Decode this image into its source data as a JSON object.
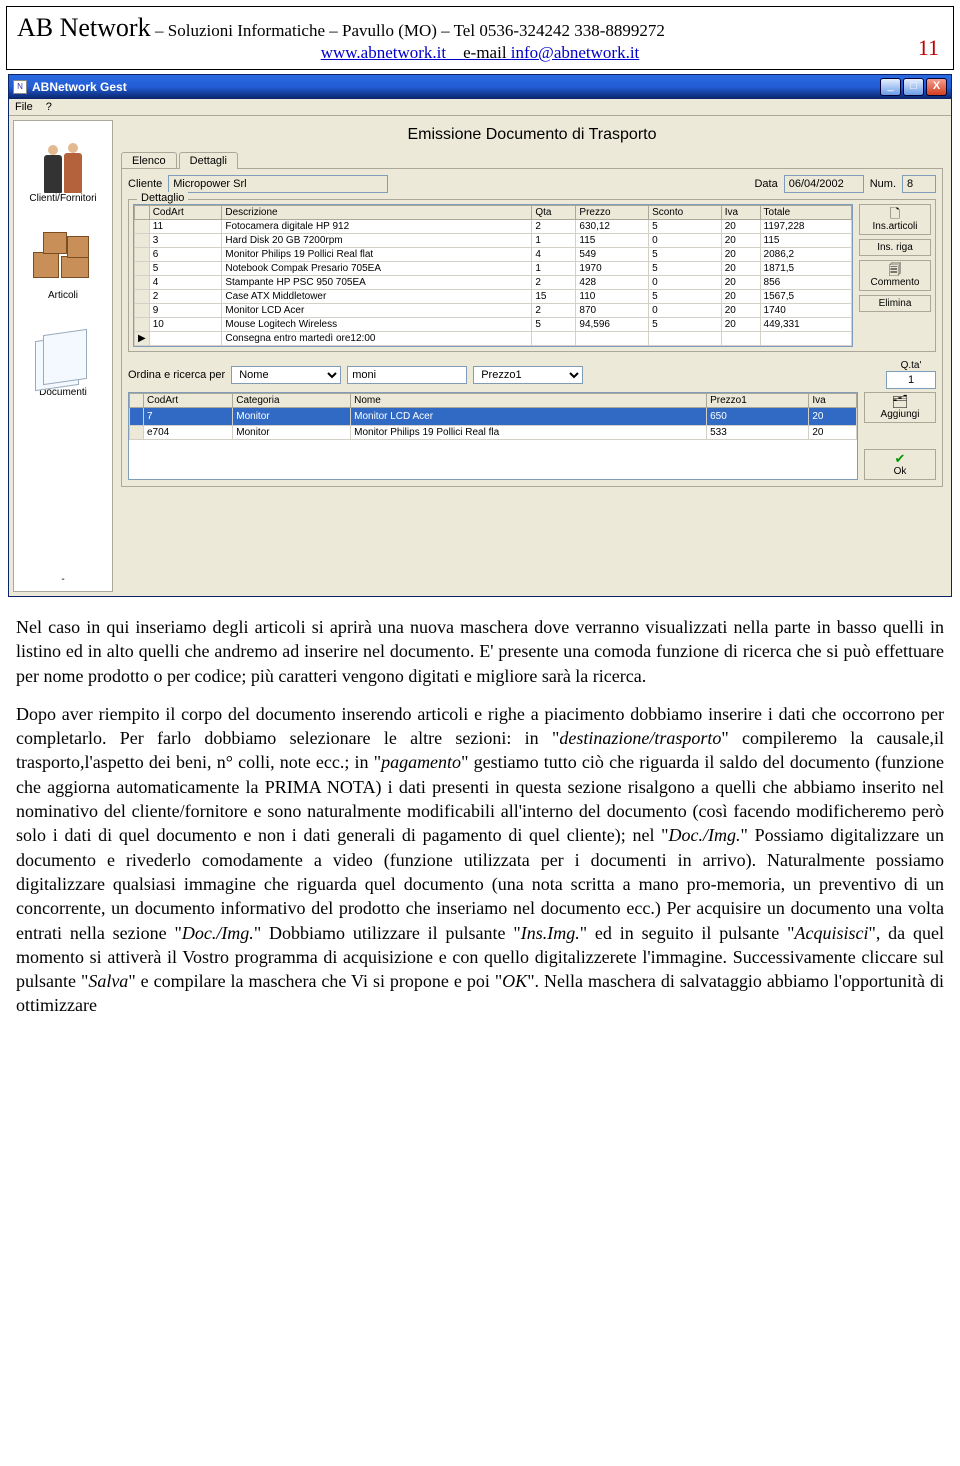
{
  "header": {
    "brand": "AB Network",
    "sep": " – ",
    "tagline": "Soluzioni Informatiche – Pavullo (MO) – Tel 0536-324242  338-8899272",
    "web": "www.abnetwork.it",
    "email_lbl": "e-mail ",
    "email": "info@abnetwork.it",
    "page": "11"
  },
  "win": {
    "title": "ABNetwork Gest",
    "menu_file": "File",
    "menu_help": "?"
  },
  "sidebar": {
    "clienti": "Clienti/Fornitori",
    "articoli": "Articoli",
    "documenti": "Documenti"
  },
  "doc": {
    "title": "Emissione Documento di Trasporto",
    "tab_elenco": "Elenco",
    "tab_dettagli": "Dettagli",
    "cliente_lbl": "Cliente",
    "cliente_val": "Micropower Srl",
    "data_lbl": "Data",
    "data_val": "06/04/2002",
    "num_lbl": "Num.",
    "num_val": "8",
    "dettaglio_legend": "Dettaglio"
  },
  "grid1": {
    "cols": [
      "CodArt",
      "Descrizione",
      "Qta",
      "Prezzo",
      "Sconto",
      "Iva",
      "Totale"
    ],
    "rows": [
      [
        "11",
        "Fotocamera digitale HP 912",
        "2",
        "630,12",
        "5",
        "20",
        "1197,228"
      ],
      [
        "3",
        "Hard Disk 20 GB 7200rpm",
        "1",
        "115",
        "0",
        "20",
        "115"
      ],
      [
        "6",
        "Monitor Philips 19 Pollici Real flat",
        "4",
        "549",
        "5",
        "20",
        "2086,2"
      ],
      [
        "5",
        "Notebook Compak Presario 705EA",
        "1",
        "1970",
        "5",
        "20",
        "1871,5"
      ],
      [
        "4",
        "Stampante HP PSC 950 705EA",
        "2",
        "428",
        "0",
        "20",
        "856"
      ],
      [
        "2",
        "Case ATX Middletower",
        "15",
        "110",
        "5",
        "20",
        "1567,5"
      ],
      [
        "9",
        "Monitor LCD Acer",
        "2",
        "870",
        "0",
        "20",
        "1740"
      ],
      [
        "10",
        "Mouse Logitech Wireless",
        "5",
        "94,596",
        "5",
        "20",
        "449,331"
      ],
      [
        "",
        "Consegna entro martedì ore12:00",
        "",
        "",
        "",
        "",
        ""
      ]
    ]
  },
  "btns": {
    "ins_art": "Ins.articoli",
    "ins_riga": "Ins. riga",
    "commento": "Commento",
    "elimina": "Elimina",
    "aggiungi": "Aggiungi",
    "ok": "Ok"
  },
  "search": {
    "lbl": "Ordina e ricerca per",
    "by": "Nome",
    "term": "moni",
    "col3": "Prezzo1",
    "qta_lbl": "Q.ta'",
    "qta_val": "1"
  },
  "grid2": {
    "cols": [
      "CodArt",
      "Categoria",
      "Nome",
      "Prezzo1",
      "Iva"
    ],
    "rows": [
      [
        "7",
        "Monitor",
        "Monitor LCD Acer",
        "650",
        "20"
      ],
      [
        "e704",
        "Monitor",
        "Monitor Philips 19 Pollici Real fla",
        "533",
        "20"
      ]
    ]
  },
  "para1": "Nel caso in qui inseriamo degli articoli si aprirà una nuova maschera dove verranno visualizzati nella parte in basso quelli in listino ed in alto quelli che andremo ad inserire nel documento. E' presente una comoda funzione di ricerca che si può effettuare per nome prodotto o per codice; più caratteri vengono digitati e migliore sarà la ricerca.",
  "p2a": "Dopo aver riempito il corpo del documento inserendo articoli e righe a piacimento dobbiamo inserire i dati che occorrono per completarlo. Per farlo dobbiamo selezionare le altre sezioni: in \"",
  "p2b": "destinazione/trasporto",
  "p2c": "\" compileremo la causale,il trasporto,l'aspetto dei beni, n° colli, note ecc.; in \"",
  "p2d": "pagamento",
  "p2e": "\" gestiamo tutto ciò che riguarda il saldo del documento (funzione che aggiorna automaticamente la PRIMA NOTA) i dati presenti in questa sezione risalgono a quelli che abbiamo inserito nel nominativo del cliente/fornitore e sono naturalmente modificabili all'interno del documento (così facendo modificheremo però solo i dati di quel documento e non i dati generali di pagamento di quel cliente); nel \"",
  "p2f": "Doc./Img.",
  "p2g": "\" Possiamo digitalizzare un documento e rivederlo comodamente a video (funzione utilizzata per i documenti in arrivo). Naturalmente possiamo digitalizzare qualsiasi immagine che riguarda quel documento (una nota scritta a mano pro-memoria, un preventivo di un concorrente, un documento informativo del prodotto che inseriamo nel documento ecc.) Per acquisire un documento una volta entrati nella sezione \"",
  "p2h": "Doc./Img.",
  "p2i": "\" Dobbiamo utilizzare il pulsante \"",
  "p2j": "Ins.Img.",
  "p2k": "\"  ed in seguito il pulsante \"",
  "p2l": "Acquisisci",
  "p2m": "\", da quel momento si attiverà il Vostro programma di acquisizione e con quello digitalizzerete l'immagine. Successivamente cliccare sul pulsante \"",
  "p2n": "Salva",
  "p2o": "\" e compilare la maschera che Vi si propone e poi \"",
  "p2p": "OK",
  "p2q": "\". Nella maschera di salvataggio abbiamo l'opportunità di ottimizzare"
}
